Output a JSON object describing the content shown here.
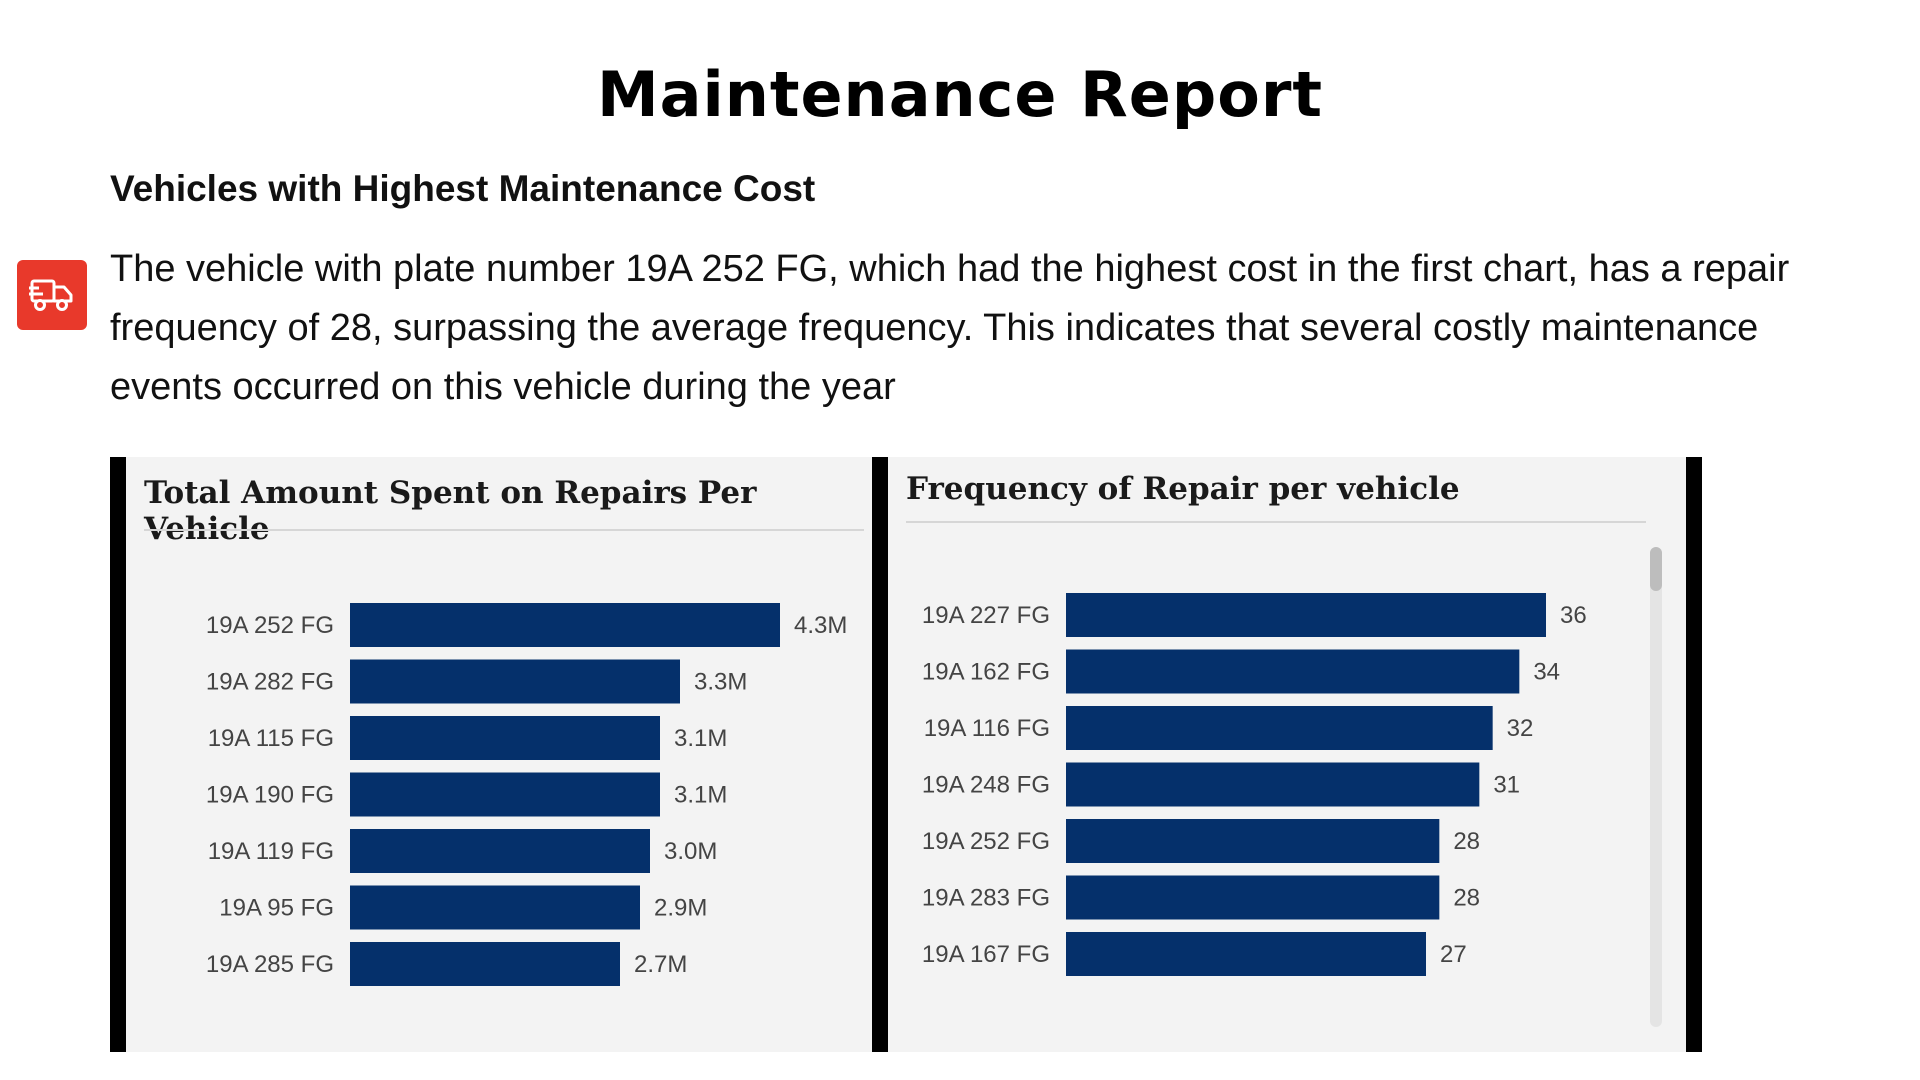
{
  "header": {
    "title": "Maintenance Report",
    "section_title": "Vehicles with Highest Maintenance Cost",
    "description": "The vehicle with plate number 19A 252 FG, which had the highest cost in the first chart, has a repair frequency of 28, surpassing the average frequency. This indicates that several costly maintenance events occurred on this vehicle during the year",
    "icon": "truck-icon",
    "icon_color": "#e8392b"
  },
  "chart_data": [
    {
      "type": "bar",
      "orientation": "horizontal",
      "title": "Total Amount Spent on Repairs Per Vehicle",
      "categories": [
        "19A 252 FG",
        "19A 282 FG",
        "19A 115 FG",
        "19A 190 FG",
        "19A 119 FG",
        "19A 95 FG",
        "19A 285 FG"
      ],
      "values": [
        4300000,
        3300000,
        3100000,
        3100000,
        3000000,
        2900000,
        2700000
      ],
      "data_labels": [
        "4.3M",
        "3.3M",
        "3.1M",
        "3.1M",
        "3.0M",
        "2.9M",
        "2.7M"
      ],
      "xlim": [
        0,
        4300000
      ],
      "bar_color": "#05306b",
      "grid": false
    },
    {
      "type": "bar",
      "orientation": "horizontal",
      "title": "Frequency of Repair per vehicle",
      "categories": [
        "19A 227 FG",
        "19A 162 FG",
        "19A 116 FG",
        "19A 248 FG",
        "19A 252 FG",
        "19A 283 FG",
        "19A 167 FG"
      ],
      "values": [
        36,
        34,
        32,
        31,
        28,
        28,
        27
      ],
      "data_labels": [
        "36",
        "34",
        "32",
        "31",
        "28",
        "28",
        "27"
      ],
      "xlim": [
        0,
        36
      ],
      "bar_color": "#05306b",
      "grid": false
    }
  ]
}
